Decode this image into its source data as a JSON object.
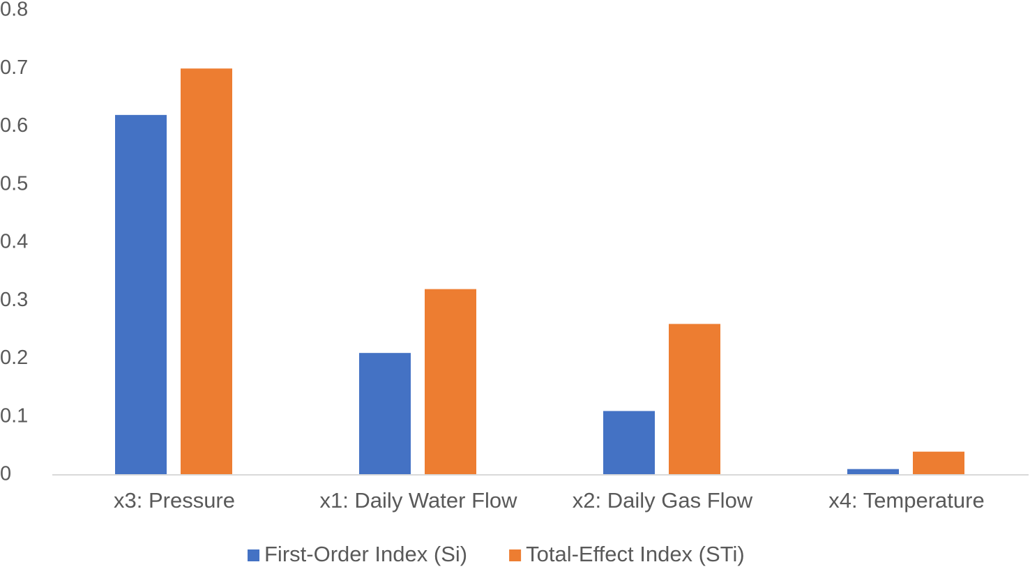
{
  "chart_data": {
    "type": "bar",
    "categories": [
      "x3: Pressure",
      "x1: Daily Water Flow",
      "x2: Daily Gas Flow",
      "x4: Temperature"
    ],
    "series": [
      {
        "name": "First-Order Index (Si)",
        "color": "#4472c4",
        "values": [
          0.62,
          0.21,
          0.11,
          0.01
        ]
      },
      {
        "name": "Total-Effect Index (STi)",
        "color": "#ed7d31",
        "values": [
          0.7,
          0.32,
          0.26,
          0.04
        ]
      }
    ],
    "ylim": [
      0,
      0.8
    ],
    "yticks": [
      0,
      0.1,
      0.2,
      0.3,
      0.4,
      0.5,
      0.6,
      0.7,
      0.8
    ],
    "grid": false
  }
}
